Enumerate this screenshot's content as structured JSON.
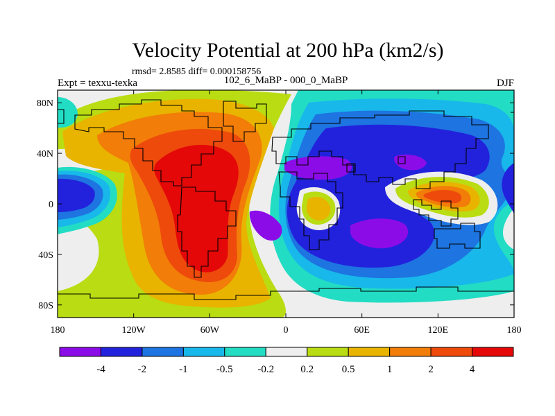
{
  "chart_data": {
    "type": "heatmap",
    "title": "Velocity Potential at 200 hPa (km2/s)",
    "stats": "rmsd= 2.8585 diff= 0.000158756",
    "left_label": "Expt = texxu-texka",
    "center_label": "102_6_MaBP - 000_0_MaBP",
    "right_label": "DJF",
    "x_ticks": [
      "180",
      "120W",
      "60W",
      "0",
      "60E",
      "120E",
      "180"
    ],
    "x_tick_values": [
      -180,
      -120,
      -60,
      0,
      60,
      120,
      180
    ],
    "y_ticks": [
      "80N",
      "40N",
      "0",
      "40S",
      "80S"
    ],
    "y_tick_values": [
      80,
      40,
      0,
      -40,
      -80
    ],
    "xlim": [
      -180,
      180
    ],
    "ylim": [
      -90,
      90
    ],
    "colorbar": {
      "colors": [
        "#8c0ce8",
        "#2222dd",
        "#1e74e0",
        "#18b8ea",
        "#22dcc4",
        "#eeeeee",
        "#b9dc12",
        "#e8b400",
        "#f27d08",
        "#ed4a0c",
        "#e40808"
      ],
      "labels": [
        "-4",
        "-2",
        "-1",
        "-0.5",
        "-0.2",
        "0.2",
        "0.5",
        "1",
        "2",
        "4"
      ]
    }
  }
}
